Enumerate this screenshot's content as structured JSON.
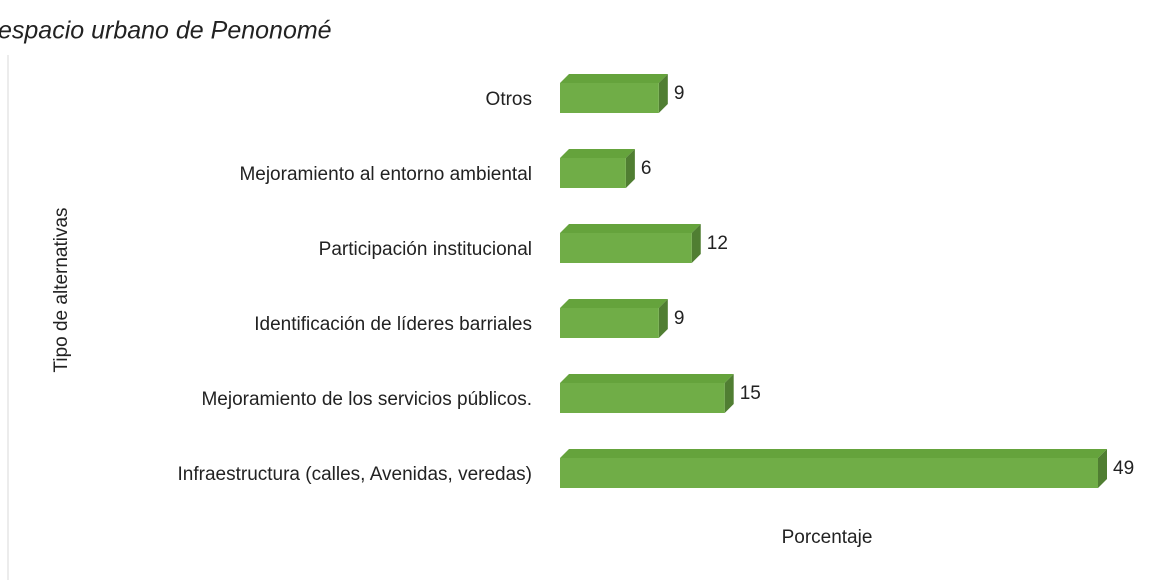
{
  "chart_data": {
    "type": "bar3d_horizontal",
    "title": "espacio urbano de Penonomé",
    "y_label": "Tipo de alternativas",
    "x_label": "Porcentaje",
    "categories": [
      "Otros",
      "Mejoramiento al entorno ambiental",
      "Participación institucional",
      "Identificación de líderes barriales",
      "Mejoramiento de los servicios públicos.",
      "Infraestructura (calles, Avenidas, veredas)"
    ],
    "values": [
      9,
      6,
      12,
      9,
      15,
      49
    ],
    "color": "#70ad47"
  }
}
